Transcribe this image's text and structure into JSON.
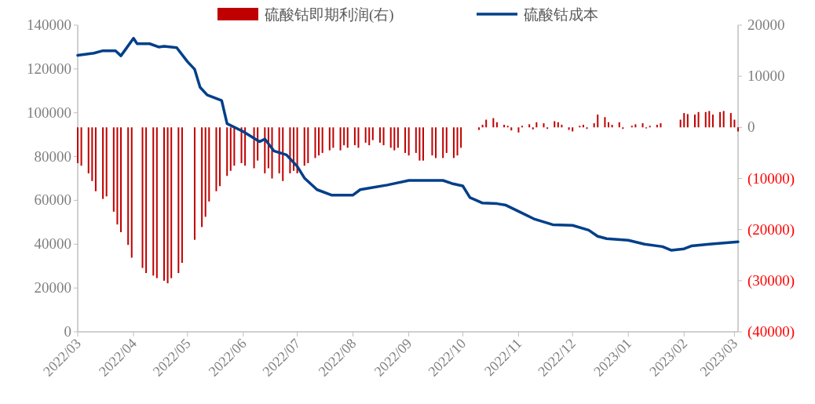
{
  "chart_data": {
    "type": "line",
    "legend": "top",
    "xlim": [
      "2022-03-01",
      "2023-03-03"
    ],
    "xticks": [
      {
        "value": "2022-03-01",
        "label": "2022/03"
      },
      {
        "value": "2022-04-01",
        "label": "2022/04"
      },
      {
        "value": "2022-05-01",
        "label": "2022/05"
      },
      {
        "value": "2022-06-01",
        "label": "2022/06"
      },
      {
        "value": "2022-07-01",
        "label": "2022/07"
      },
      {
        "value": "2022-08-01",
        "label": "2022/08"
      },
      {
        "value": "2022-09-01",
        "label": "2022/09"
      },
      {
        "value": "2022-10-01",
        "label": "2022/10"
      },
      {
        "value": "2022-11-01",
        "label": "2022/11"
      },
      {
        "value": "2022-12-01",
        "label": "2022/12"
      },
      {
        "value": "2023-01-01",
        "label": "2023/01"
      },
      {
        "value": "2023-02-01",
        "label": "2023/02"
      },
      {
        "value": "2023-03-01",
        "label": "2023/03"
      }
    ],
    "ylim": [
      0,
      140000
    ],
    "yticks": [
      0,
      20000,
      40000,
      60000,
      80000,
      100000,
      120000,
      140000
    ],
    "y2lim": [
      -40000,
      20000
    ],
    "y2ticks": [
      {
        "value": -40000,
        "label": "(40000)"
      },
      {
        "value": -30000,
        "label": "(30000)"
      },
      {
        "value": -20000,
        "label": "(20000)"
      },
      {
        "value": -10000,
        "label": "(10000)"
      },
      0,
      10000,
      20000
    ],
    "series": [
      {
        "name": "硫酸钴即期利润(右)",
        "type": "bar",
        "axis": "y2",
        "color": "#c00000",
        "x": [
          "2022-03-01",
          "2022-03-03",
          "2022-03-07",
          "2022-03-09",
          "2022-03-11",
          "2022-03-15",
          "2022-03-17",
          "2022-03-21",
          "2022-03-23",
          "2022-03-25",
          "2022-03-29",
          "2022-03-31",
          "2022-04-06",
          "2022-04-08",
          "2022-04-12",
          "2022-04-14",
          "2022-04-18",
          "2022-04-20",
          "2022-04-22",
          "2022-04-26",
          "2022-04-28",
          "2022-05-05",
          "2022-05-09",
          "2022-05-11",
          "2022-05-13",
          "2022-05-17",
          "2022-05-19",
          "2022-05-23",
          "2022-05-25",
          "2022-05-27",
          "2022-05-31",
          "2022-06-02",
          "2022-06-07",
          "2022-06-09",
          "2022-06-13",
          "2022-06-15",
          "2022-06-17",
          "2022-06-21",
          "2022-06-23",
          "2022-06-27",
          "2022-06-29",
          "2022-07-01",
          "2022-07-05",
          "2022-07-07",
          "2022-07-11",
          "2022-07-13",
          "2022-07-15",
          "2022-07-19",
          "2022-07-21",
          "2022-07-25",
          "2022-07-27",
          "2022-07-29",
          "2022-08-02",
          "2022-08-04",
          "2022-08-08",
          "2022-08-10",
          "2022-08-12",
          "2022-08-16",
          "2022-08-18",
          "2022-08-22",
          "2022-08-24",
          "2022-08-26",
          "2022-08-30",
          "2022-09-01",
          "2022-09-05",
          "2022-09-07",
          "2022-09-09",
          "2022-09-14",
          "2022-09-16",
          "2022-09-20",
          "2022-09-22",
          "2022-09-26",
          "2022-09-28",
          "2022-09-30",
          "2022-10-10",
          "2022-10-12",
          "2022-10-14",
          "2022-10-18",
          "2022-10-20",
          "2022-10-24",
          "2022-10-26",
          "2022-10-28",
          "2022-11-01",
          "2022-11-03",
          "2022-11-07",
          "2022-11-09",
          "2022-11-11",
          "2022-11-15",
          "2022-11-17",
          "2022-11-21",
          "2022-11-23",
          "2022-11-25",
          "2022-11-29",
          "2022-12-01",
          "2022-12-05",
          "2022-12-07",
          "2022-12-09",
          "2022-12-13",
          "2022-12-15",
          "2022-12-19",
          "2022-12-21",
          "2022-12-23",
          "2022-12-27",
          "2022-12-29",
          "2023-01-03",
          "2023-01-05",
          "2023-01-09",
          "2023-01-11",
          "2023-01-13",
          "2023-01-17",
          "2023-01-19",
          "2023-01-30",
          "2023-02-01",
          "2023-02-03",
          "2023-02-07",
          "2023-02-09",
          "2023-02-13",
          "2023-02-15",
          "2023-02-17",
          "2023-02-21",
          "2023-02-23",
          "2023-02-27",
          "2023-03-01",
          "2023-03-03"
        ],
        "values": [
          -7000,
          -7500,
          -9000,
          -10500,
          -12500,
          -14000,
          -13500,
          -16500,
          -19000,
          -20500,
          -23000,
          -25500,
          -27500,
          -28500,
          -29000,
          -29500,
          -30000,
          -30500,
          -29500,
          -28500,
          -26500,
          -22000,
          -19500,
          -17500,
          -14500,
          -12500,
          -11500,
          -9500,
          -8500,
          -7500,
          -7000,
          -7500,
          -8000,
          -6500,
          -9000,
          -8000,
          -10000,
          -9000,
          -10500,
          -9000,
          -8500,
          -9000,
          -7500,
          -7000,
          -6000,
          -5500,
          -5000,
          -4500,
          -4000,
          -4500,
          -3500,
          -4000,
          -3500,
          -4000,
          -3000,
          -3500,
          -2500,
          -3000,
          -3500,
          -4000,
          -4500,
          -4000,
          -5000,
          -5500,
          -5000,
          -6500,
          -6500,
          -5500,
          -6000,
          -6000,
          -5000,
          -6000,
          -5500,
          -4000,
          -500,
          500,
          1500,
          1800,
          1000,
          500,
          300,
          -600,
          -1000,
          300,
          600,
          -400,
          1000,
          800,
          -300,
          1200,
          1000,
          500,
          -500,
          -800,
          300,
          500,
          -300,
          800,
          2500,
          2000,
          1000,
          500,
          1000,
          -300,
          300,
          600,
          800,
          -200,
          300,
          500,
          800,
          1500,
          2800,
          2600,
          2500,
          3000,
          3000,
          3200,
          2500,
          3000,
          3200,
          2800,
          1500,
          -800
        ]
      },
      {
        "name": "硫酸钴成本",
        "axis": "y",
        "color": "#003f8a",
        "x": [
          "2022-03-01",
          "2022-03-10",
          "2022-03-15",
          "2022-03-22",
          "2022-03-25",
          "2022-03-28",
          "2022-04-01",
          "2022-04-03",
          "2022-04-10",
          "2022-04-15",
          "2022-04-18",
          "2022-04-25",
          "2022-05-01",
          "2022-05-05",
          "2022-05-08",
          "2022-05-12",
          "2022-05-20",
          "2022-05-23",
          "2022-06-01",
          "2022-06-10",
          "2022-06-13",
          "2022-06-18",
          "2022-06-25",
          "2022-07-01",
          "2022-07-05",
          "2022-07-12",
          "2022-07-20",
          "2022-08-01",
          "2022-08-05",
          "2022-08-10",
          "2022-08-20",
          "2022-09-01",
          "2022-09-20",
          "2022-09-25",
          "2022-10-01",
          "2022-10-05",
          "2022-10-12",
          "2022-10-20",
          "2022-10-25",
          "2022-11-03",
          "2022-11-10",
          "2022-11-20",
          "2022-12-01",
          "2022-12-10",
          "2022-12-15",
          "2022-12-20",
          "2023-01-01",
          "2023-01-10",
          "2023-01-20",
          "2023-01-25",
          "2023-02-01",
          "2023-02-05",
          "2023-02-15",
          "2023-03-03"
        ],
        "values": [
          126200,
          127200,
          128300,
          128300,
          126000,
          129400,
          134000,
          131500,
          131500,
          130000,
          130300,
          129700,
          123300,
          119800,
          111600,
          108100,
          105600,
          95000,
          91400,
          86800,
          88000,
          82600,
          80800,
          75500,
          70200,
          64900,
          62400,
          62400,
          64900,
          65600,
          67000,
          69100,
          69100,
          67700,
          66600,
          61300,
          58800,
          58500,
          57800,
          54200,
          51400,
          48900,
          48600,
          46400,
          43600,
          42500,
          41800,
          40000,
          38900,
          37200,
          37900,
          39200,
          40000,
          41100
        ]
      }
    ]
  }
}
